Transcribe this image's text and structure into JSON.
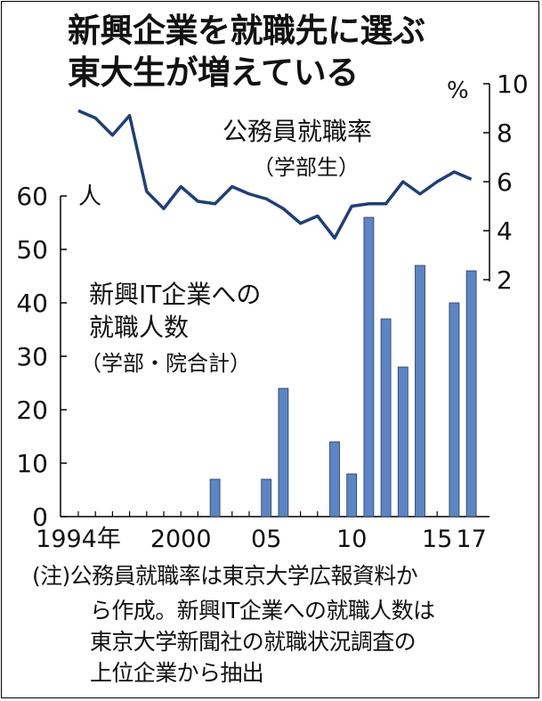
{
  "title": {
    "line1": "新興企業を就職先に選ぶ",
    "line2": "東大生が増えている"
  },
  "labels": {
    "line_series": "公務員就職率",
    "line_sub": "（学部生）",
    "bar_series_1": "新興IT企業への",
    "bar_series_2": "就職人数",
    "bar_sub": "（学部・院合計）",
    "left_unit": "人",
    "right_unit": "%"
  },
  "note": {
    "line1": "(注)公務員就職率は東京大学広報資料か",
    "line2": "ら作成。新興IT企業への就職人数は",
    "line3": "東京大学新聞社の就職状況調査の",
    "line4": "上位企業から抽出"
  },
  "chart_data": {
    "type": "bar+line",
    "years": [
      1994,
      1995,
      1996,
      1997,
      1998,
      1999,
      2000,
      2001,
      2002,
      2003,
      2004,
      2005,
      2006,
      2007,
      2008,
      2009,
      2010,
      2011,
      2012,
      2013,
      2014,
      2015,
      2016,
      2017
    ],
    "x_tick_labels": [
      {
        "year": 1994,
        "label": "1994年"
      },
      {
        "year": 2000,
        "label": "2000"
      },
      {
        "year": 2005,
        "label": "05"
      },
      {
        "year": 2010,
        "label": "10"
      },
      {
        "year": 2015,
        "label": "15"
      },
      {
        "year": 2017,
        "label": "17"
      }
    ],
    "bars": {
      "name": "新興IT企業への就職人数",
      "unit": "人",
      "values": [
        0,
        0,
        0,
        0,
        0,
        0,
        0,
        0,
        7,
        0,
        0,
        7,
        24,
        0,
        0,
        14,
        8,
        56,
        37,
        28,
        47,
        0,
        40,
        46
      ],
      "ylim": [
        0,
        60
      ],
      "ticks": [
        0,
        10,
        20,
        30,
        40,
        50,
        60
      ],
      "color": "#5b85c4"
    },
    "line": {
      "name": "公務員就職率",
      "unit": "%",
      "values": [
        8.9,
        8.6,
        7.9,
        8.7,
        5.6,
        4.9,
        5.8,
        5.2,
        5.1,
        5.8,
        5.5,
        5.3,
        4.9,
        4.3,
        4.6,
        3.7,
        5.0,
        5.1,
        5.1,
        6.0,
        5.5,
        6.0,
        6.4,
        6.1
      ],
      "ylim": [
        0,
        10
      ],
      "ticks": [
        2,
        4,
        6,
        8,
        10
      ],
      "color": "#1f3f7a"
    }
  }
}
